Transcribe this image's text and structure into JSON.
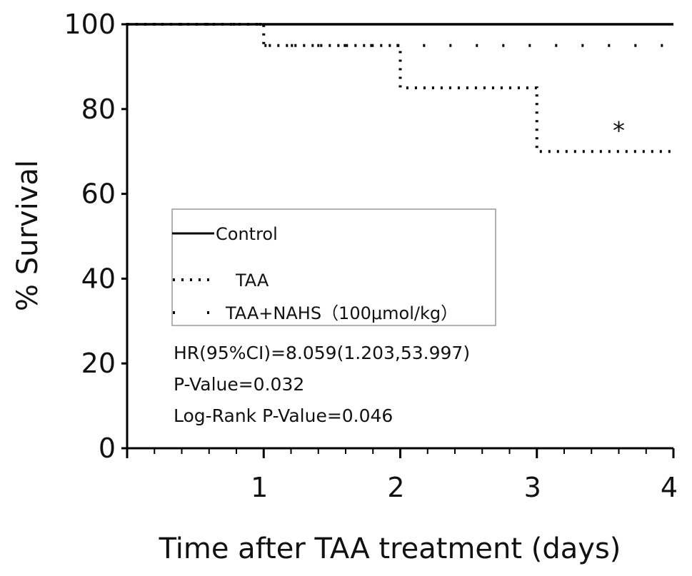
{
  "chart_data": {
    "type": "line",
    "title": "",
    "xlabel": "Time after TAA treatment (days)",
    "ylabel": "% Survival",
    "xlim": [
      0,
      4
    ],
    "ylim": [
      0,
      100
    ],
    "x_ticks": [
      1,
      2,
      3,
      4
    ],
    "y_ticks": [
      0,
      20,
      40,
      60,
      80,
      100
    ],
    "step": true,
    "grid": false,
    "legend_position": "center-left",
    "series": [
      {
        "name": "Control",
        "style": "solid",
        "x": [
          0,
          4
        ],
        "y": [
          100,
          100
        ]
      },
      {
        "name": "TAA",
        "style": "dotted",
        "x": [
          0,
          1,
          2,
          3,
          4
        ],
        "y": [
          100,
          95,
          85,
          70,
          70
        ]
      },
      {
        "name": "TAA+NAHS（100μmol/kg）",
        "style": "sparse-dotted",
        "x": [
          0,
          1,
          4
        ],
        "y": [
          100,
          95,
          95
        ]
      }
    ],
    "annotations": [
      {
        "text": "*",
        "x": 3.6,
        "y": 73
      }
    ],
    "stats": [
      "HR(95%CI)=8.059(1.203,53.997)",
      "P-Value=0.032",
      "Log-Rank P-Value=0.046"
    ]
  }
}
